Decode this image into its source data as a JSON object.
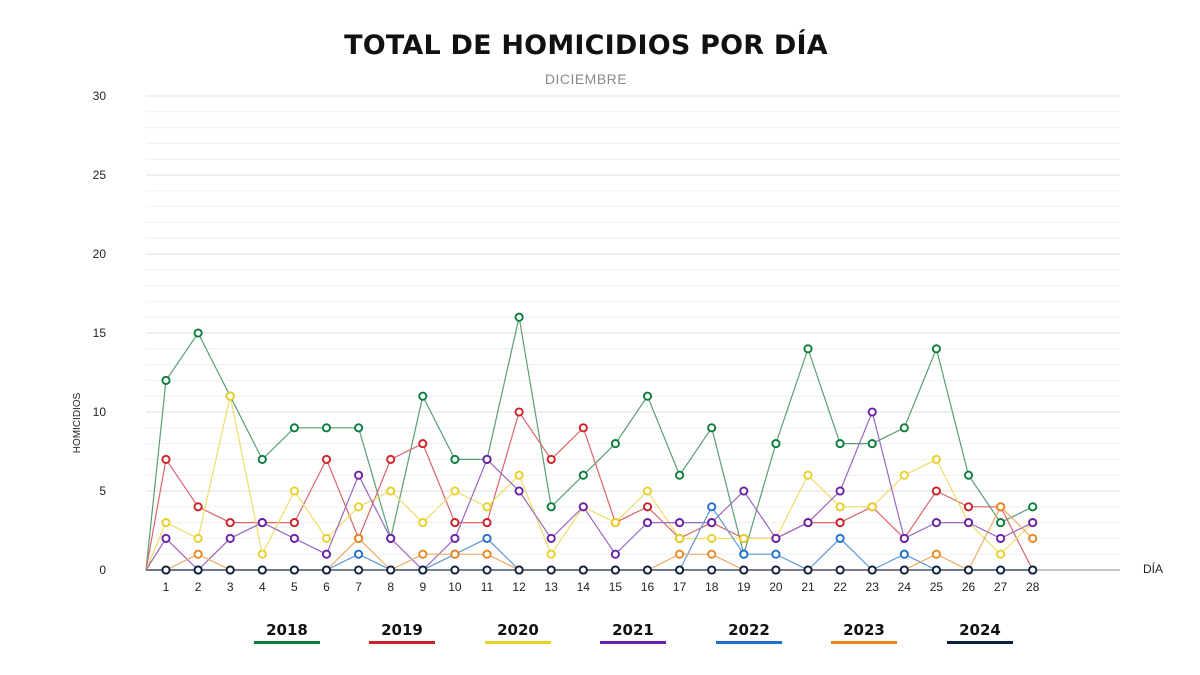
{
  "chart_data": {
    "type": "line",
    "title": "TOTAL DE HOMICIDIOS POR DÍA",
    "subtitle": "DICIEMBRE",
    "xlabel": "DÍA",
    "ylabel": "HOMICIDIOS",
    "x": [
      1,
      2,
      3,
      4,
      5,
      6,
      7,
      8,
      9,
      10,
      11,
      12,
      13,
      14,
      15,
      16,
      17,
      18,
      19,
      20,
      21,
      22,
      23,
      24,
      25,
      26,
      27,
      28
    ],
    "x_labels": [
      "1",
      "2",
      "3",
      "4",
      "5",
      "6",
      "7",
      "8",
      "9",
      "10",
      "11",
      "12",
      "13",
      "14",
      "15",
      "16",
      "17",
      "18",
      "19",
      "20",
      "21",
      "22",
      "23",
      "24",
      "25",
      "26",
      "27",
      "28"
    ],
    "ylim": [
      0,
      30
    ],
    "y_ticks": [
      "0",
      "5",
      "10",
      "15",
      "20",
      "25",
      "30"
    ],
    "grid": true,
    "legend_position": "bottom",
    "series": [
      {
        "name": "2018",
        "color": "#0a7d3b",
        "line_color": "#5a9e76",
        "values": [
          12,
          15,
          11,
          7,
          9,
          9,
          9,
          2,
          11,
          7,
          7,
          16,
          4,
          6,
          8,
          11,
          6,
          9,
          1,
          8,
          14,
          8,
          8,
          9,
          14,
          6,
          3,
          4
        ]
      },
      {
        "name": "2019",
        "color": "#cc2027",
        "line_color": "#d9666a",
        "values": [
          7,
          4,
          3,
          3,
          3,
          7,
          2,
          7,
          8,
          3,
          3,
          10,
          7,
          9,
          3,
          4,
          2,
          3,
          2,
          2,
          3,
          3,
          4,
          2,
          5,
          4,
          4,
          0
        ]
      },
      {
        "name": "2020",
        "color": "#e8d02a",
        "line_color": "#eedd66",
        "values": [
          3,
          2,
          11,
          1,
          5,
          2,
          4,
          5,
          3,
          5,
          4,
          6,
          1,
          4,
          3,
          5,
          2,
          2,
          2,
          2,
          6,
          4,
          4,
          6,
          7,
          3,
          1,
          3
        ]
      },
      {
        "name": "2021",
        "color": "#6a1fa8",
        "line_color": "#9a66c4",
        "values": [
          2,
          0,
          2,
          3,
          2,
          1,
          6,
          2,
          0,
          2,
          7,
          5,
          2,
          4,
          1,
          3,
          3,
          3,
          5,
          2,
          3,
          5,
          10,
          2,
          3,
          3,
          2,
          3
        ]
      },
      {
        "name": "2022",
        "color": "#1f6fcc",
        "line_color": "#5e98d9",
        "values": [
          0,
          0,
          0,
          0,
          0,
          0,
          1,
          0,
          0,
          1,
          2,
          0,
          0,
          0,
          0,
          0,
          0,
          4,
          1,
          1,
          0,
          2,
          0,
          1,
          0,
          0,
          0,
          0
        ]
      },
      {
        "name": "2023",
        "color": "#e8861f",
        "line_color": "#eeaa60",
        "values": [
          0,
          1,
          0,
          0,
          0,
          0,
          2,
          0,
          1,
          1,
          1,
          0,
          0,
          0,
          0,
          0,
          1,
          1,
          0,
          0,
          0,
          0,
          0,
          0,
          1,
          0,
          4,
          2
        ]
      },
      {
        "name": "2024",
        "color": "#0d1f3d",
        "line_color": "#3a4a66",
        "values": [
          0,
          0,
          0,
          0,
          0,
          0,
          0,
          0,
          0,
          0,
          0,
          0,
          0,
          0,
          0,
          0,
          0,
          0,
          0,
          0,
          0,
          0,
          0,
          0,
          0,
          0,
          0,
          0
        ]
      }
    ]
  }
}
